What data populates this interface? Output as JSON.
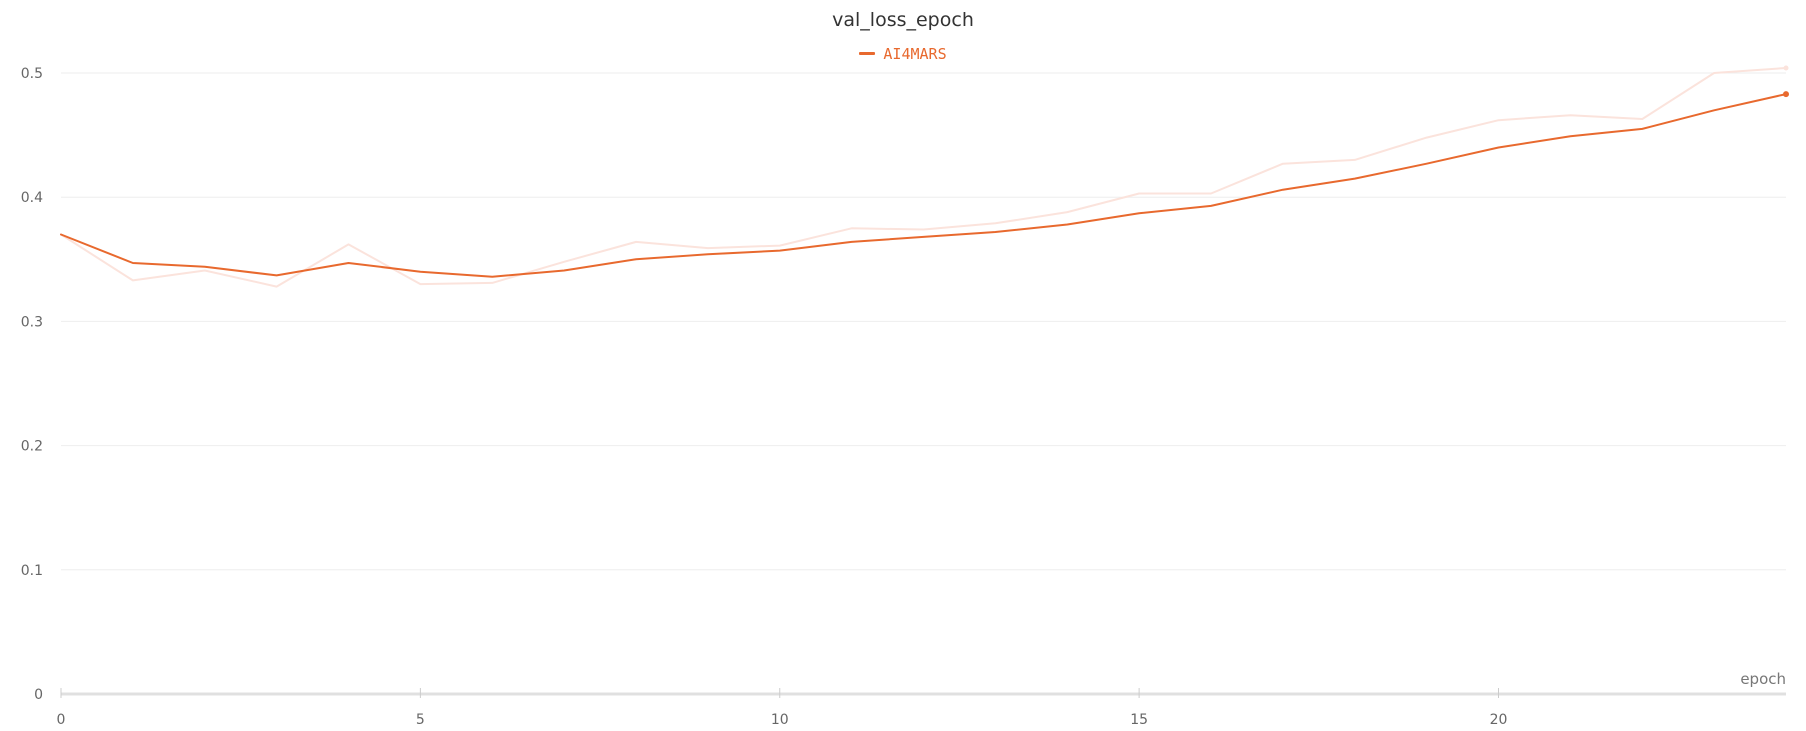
{
  "chart_data": {
    "type": "line",
    "title": "val_loss_epoch",
    "xlabel": "epoch",
    "ylabel": "",
    "xlim": [
      0,
      24
    ],
    "ylim": [
      0,
      0.5
    ],
    "x_ticks": [
      0,
      5,
      10,
      15,
      20
    ],
    "y_ticks": [
      0,
      0.1,
      0.2,
      0.3,
      0.4,
      0.5
    ],
    "grid": true,
    "legend_position": "top-center",
    "series": [
      {
        "name": "AI4MARS",
        "color": "#e8692e",
        "raw_color": "#fbe3dc",
        "x": [
          0,
          1,
          2,
          3,
          4,
          5,
          6,
          7,
          8,
          9,
          10,
          11,
          12,
          13,
          14,
          15,
          16,
          17,
          18,
          19,
          20,
          21,
          22,
          23,
          24
        ],
        "smoothed": [
          0.37,
          0.347,
          0.344,
          0.337,
          0.347,
          0.34,
          0.336,
          0.341,
          0.35,
          0.354,
          0.357,
          0.364,
          0.368,
          0.372,
          0.378,
          0.387,
          0.393,
          0.406,
          0.415,
          0.427,
          0.44,
          0.449,
          0.455,
          0.47,
          0.483
        ],
        "raw": [
          0.37,
          0.333,
          0.341,
          0.328,
          0.362,
          0.33,
          0.331,
          0.348,
          0.364,
          0.359,
          0.361,
          0.375,
          0.374,
          0.379,
          0.388,
          0.403,
          0.403,
          0.427,
          0.43,
          0.448,
          0.462,
          0.466,
          0.463,
          0.5,
          0.504
        ]
      }
    ]
  }
}
